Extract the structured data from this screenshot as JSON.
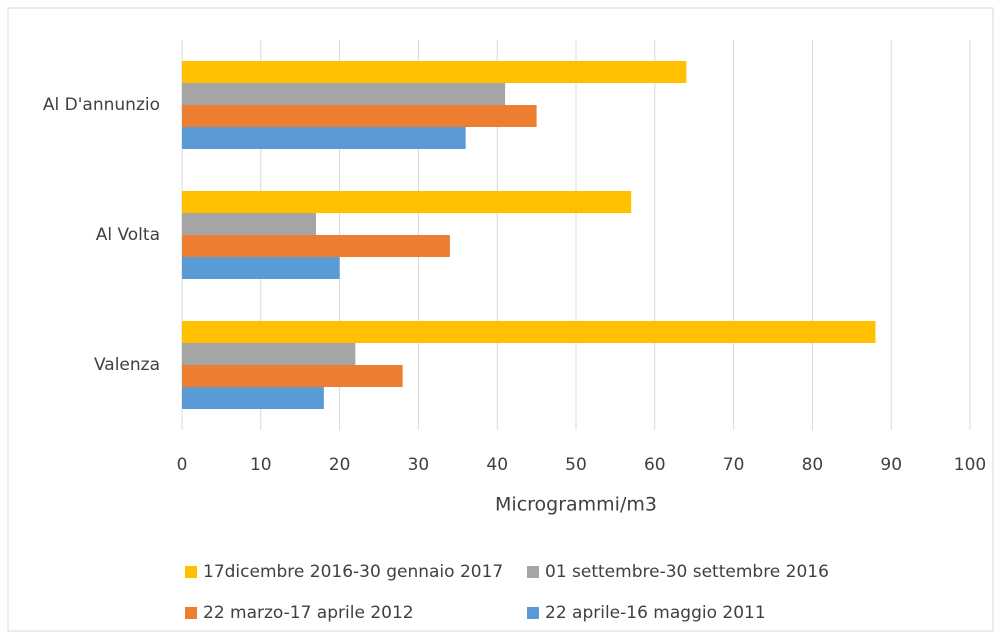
{
  "chart_data": {
    "type": "barh",
    "x_label": "Microgrammi/m3",
    "categories": [
      "Al D'annunzio",
      "Al Volta",
      "Valenza"
    ],
    "series": [
      {
        "name": "17dicembre 2016-30 gennaio 2017",
        "color": "#ffc000",
        "values": [
          64,
          57,
          88
        ]
      },
      {
        "name": "01 settembre-30 settembre 2016",
        "color": "#a5a5a5",
        "values": [
          41,
          17,
          22
        ]
      },
      {
        "name": "22 marzo-17 aprile 2012",
        "color": "#ed7d31",
        "values": [
          45,
          34,
          28
        ]
      },
      {
        "name": "22 aprile-16 maggio 2011",
        "color": "#5b9bd5",
        "values": [
          36,
          20,
          18
        ]
      }
    ],
    "xlim": [
      0,
      100
    ],
    "xticks": [
      0,
      10,
      20,
      30,
      40,
      50,
      60,
      70,
      80,
      90,
      100
    ],
    "grid": true
  }
}
